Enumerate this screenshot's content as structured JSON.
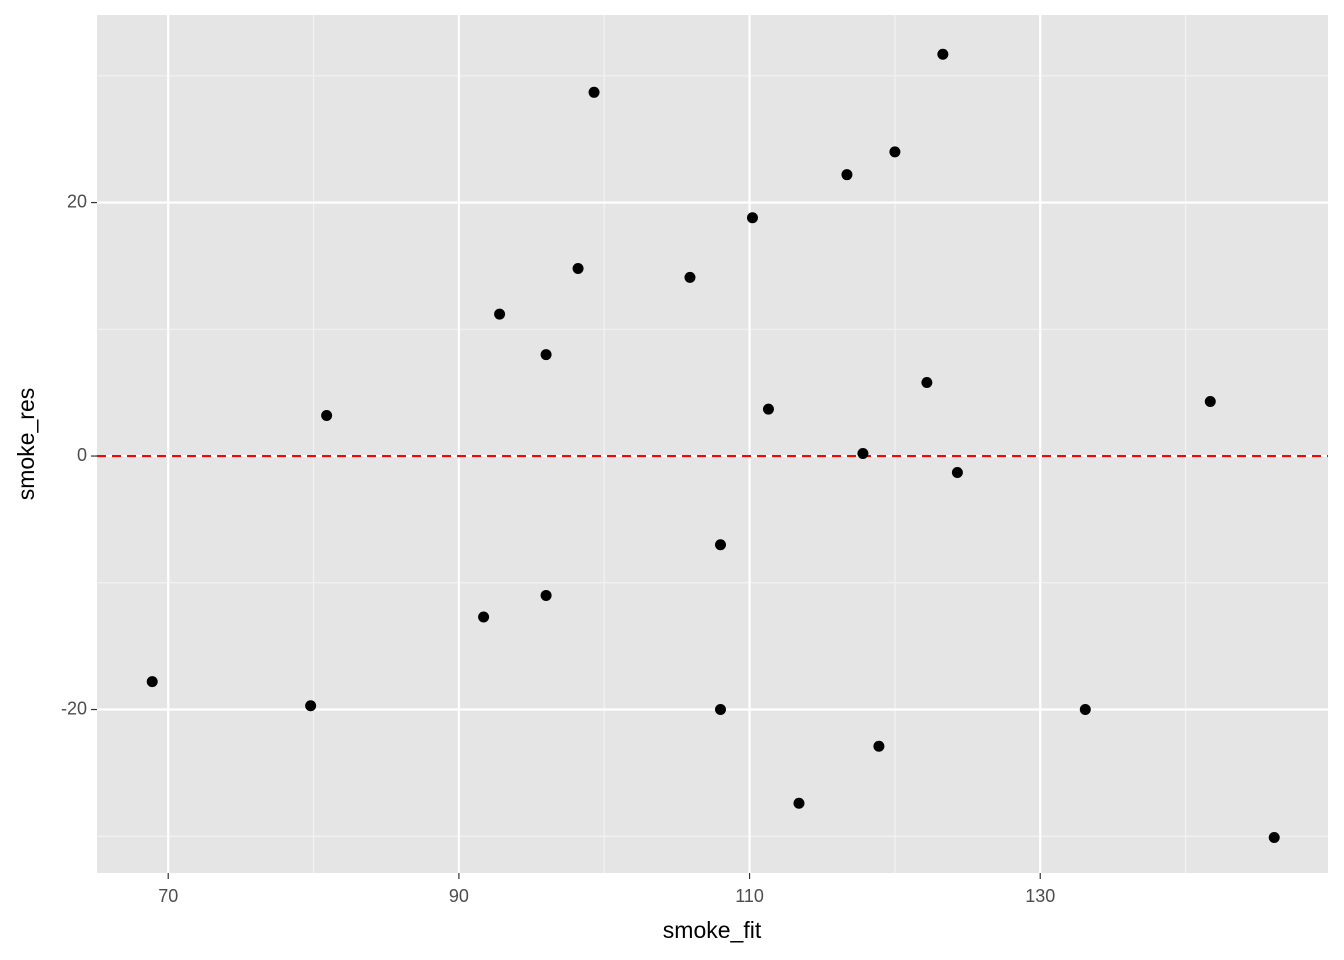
{
  "chart_data": {
    "type": "scatter",
    "x_label": "smoke_fit",
    "y_label": "smoke_res",
    "x": [
      68.9,
      79.8,
      80.9,
      91.7,
      92.8,
      96.0,
      96.0,
      98.2,
      99.3,
      105.9,
      108.0,
      108.0,
      110.2,
      111.3,
      113.4,
      116.7,
      117.8,
      118.9,
      120.0,
      122.2,
      123.3,
      124.3,
      133.1,
      141.7,
      146.1
    ],
    "values": [
      -17.8,
      -19.7,
      3.2,
      -12.7,
      11.2,
      8.0,
      -11.0,
      14.8,
      28.7,
      14.1,
      -7.0,
      -20.0,
      18.8,
      3.7,
      -27.4,
      22.2,
      0.2,
      -22.9,
      24.0,
      5.8,
      31.7,
      -1.3,
      -20.0,
      4.3,
      -30.1
    ],
    "color": "#000000",
    "xlim": [
      65.1,
      149.8
    ],
    "ylim": [
      -32.9,
      34.8
    ],
    "xticks": [
      70,
      90,
      110,
      130
    ],
    "yticks": [
      -20,
      0,
      20
    ],
    "x_minor_ticks": [
      80,
      100,
      120,
      140
    ],
    "y_minor_ticks": [
      -30,
      -10,
      10,
      30
    ],
    "grid": true,
    "reference_line": {
      "y": 0,
      "color": "#ff0000",
      "dashed": true
    }
  }
}
